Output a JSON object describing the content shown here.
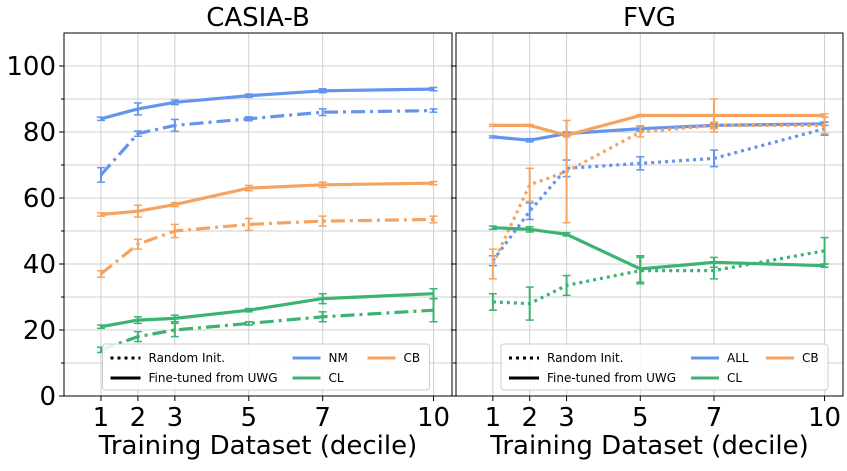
{
  "chart_data": [
    {
      "type": "line",
      "title": "CASIA-B",
      "xlabel": "Training Dataset (decile)",
      "ylabel": "",
      "x": [
        1,
        2,
        3,
        5,
        7,
        10
      ],
      "xticks": [
        "1",
        "2",
        "3",
        "5",
        "7",
        "10"
      ],
      "xlim": [
        0,
        10.5
      ],
      "ylim": [
        0,
        110
      ],
      "yticks": [
        "0",
        "20",
        "40",
        "60",
        "80",
        "100"
      ],
      "grid": true,
      "series": [
        {
          "name": "NM",
          "init": "Fine-tuned from UWG",
          "color": "#6495ED",
          "style": "solid",
          "values": [
            84,
            87,
            89,
            91,
            92.5,
            93
          ],
          "errors": [
            0.5,
            1.8,
            0.7,
            0.5,
            0.6,
            0.5
          ]
        },
        {
          "name": "NM",
          "init": "Random Init.",
          "color": "#6495ED",
          "style": "dashdot",
          "values": [
            67,
            79.5,
            82,
            84,
            86,
            86.5
          ],
          "errors": [
            2.2,
            0.8,
            1.8,
            0.6,
            1.0,
            0.5
          ]
        },
        {
          "name": "CB",
          "init": "Fine-tuned from UWG",
          "color": "#F4A460",
          "style": "solid",
          "values": [
            55,
            56,
            58,
            63,
            64,
            64.5
          ],
          "errors": [
            0.5,
            1.8,
            0.6,
            0.8,
            0.8,
            0.5
          ]
        },
        {
          "name": "CB",
          "init": "Random Init.",
          "color": "#F4A460",
          "style": "dashdot",
          "values": [
            37,
            46,
            50,
            52,
            53,
            53.5
          ],
          "errors": [
            1.0,
            1.5,
            2.0,
            1.8,
            1.5,
            1.0
          ]
        },
        {
          "name": "CL",
          "init": "Fine-tuned from UWG",
          "color": "#3CB371",
          "style": "solid",
          "values": [
            21,
            23,
            23.5,
            26,
            29.5,
            31
          ],
          "errors": [
            0.5,
            1.0,
            1.0,
            0.5,
            1.5,
            1.5
          ]
        },
        {
          "name": "CL",
          "init": "Random Init.",
          "color": "#3CB371",
          "style": "dashdot",
          "values": [
            14,
            18,
            20,
            22,
            24,
            26
          ],
          "errors": [
            0.8,
            1.5,
            2.0,
            0.5,
            1.5,
            3.5
          ]
        }
      ],
      "legend": {
        "placement": "bottom",
        "style_entries": [
          "Random Init.",
          "Fine-tuned from UWG"
        ],
        "color_entries": [
          "NM",
          "CB",
          "CL"
        ]
      }
    },
    {
      "type": "line",
      "title": "FVG",
      "xlabel": "Training Dataset (decile)",
      "ylabel": "",
      "x": [
        1,
        2,
        3,
        5,
        7,
        10
      ],
      "xticks": [
        "1",
        "2",
        "3",
        "5",
        "7",
        "10"
      ],
      "xlim": [
        0,
        10.5
      ],
      "ylim": [
        0,
        110
      ],
      "grid": true,
      "series": [
        {
          "name": "ALL",
          "init": "Fine-tuned from UWG",
          "color": "#6495ED",
          "style": "solid",
          "values": [
            78.5,
            77.5,
            79.5,
            81,
            82,
            82.5
          ],
          "errors": [
            0.3,
            0.5,
            0.5,
            0.8,
            0.5,
            0.5
          ]
        },
        {
          "name": "ALL",
          "init": "Random Init.",
          "color": "#6495ED",
          "style": "dotted",
          "values": [
            41,
            56,
            69,
            70.5,
            72,
            81
          ],
          "errors": [
            1.5,
            2.5,
            2.5,
            2.0,
            2.5,
            2.0
          ]
        },
        {
          "name": "CB",
          "init": "Fine-tuned from UWG",
          "color": "#F4A460",
          "style": "solid",
          "values": [
            82,
            82,
            79,
            85,
            85,
            85
          ],
          "errors": [
            0.3,
            0.3,
            0.5,
            0.3,
            5.0,
            0.5
          ]
        },
        {
          "name": "CB",
          "init": "Random Init.",
          "color": "#F4A460",
          "style": "dotted",
          "values": [
            40,
            64,
            68,
            80,
            82,
            82
          ],
          "errors": [
            4.5,
            5.0,
            15.5,
            1.5,
            1.0,
            2.5
          ]
        },
        {
          "name": "CL",
          "init": "Fine-tuned from UWG",
          "color": "#3CB371",
          "style": "solid",
          "values": [
            51,
            50.5,
            49,
            38.5,
            40.5,
            39.5
          ],
          "errors": [
            0.5,
            0.8,
            0.5,
            4.0,
            1.5,
            0.5
          ]
        },
        {
          "name": "CL",
          "init": "Random Init.",
          "color": "#3CB371",
          "style": "dotted",
          "values": [
            28.5,
            28,
            33.5,
            38,
            38,
            44
          ],
          "errors": [
            2.5,
            5.0,
            3.0,
            4.0,
            2.5,
            4.0
          ]
        }
      ],
      "legend": {
        "placement": "bottom",
        "style_entries": [
          "Random Init.",
          "Fine-tuned from UWG"
        ],
        "color_entries": [
          "ALL",
          "CB",
          "CL"
        ]
      }
    }
  ]
}
